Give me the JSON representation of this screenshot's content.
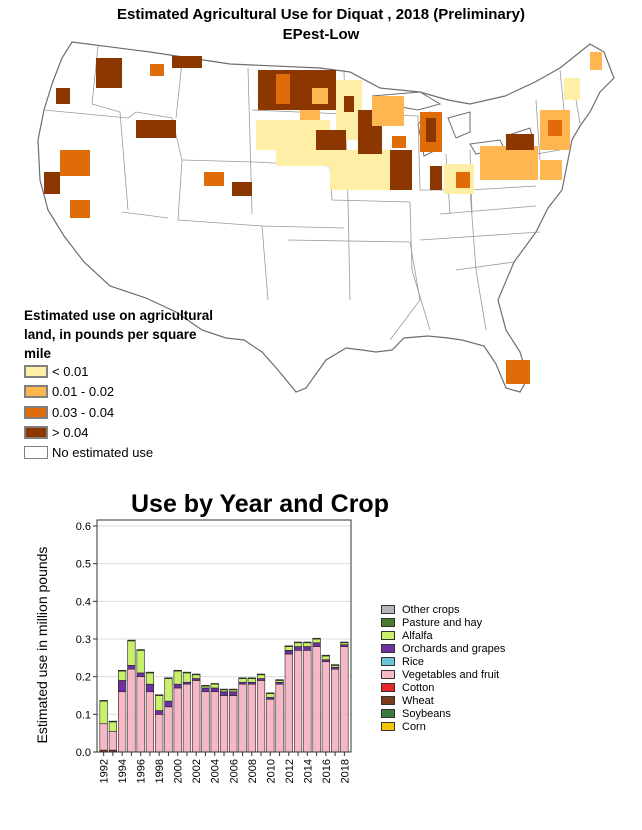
{
  "map": {
    "title": "Estimated Agricultural Use for Diquat , 2018 (Preliminary)",
    "subtitle": "EPest-Low",
    "legend_title": "Estimated use on agricultural land, in pounds per square mile",
    "legend": [
      {
        "label": "< 0.01",
        "color": "#ffeea6"
      },
      {
        "label": "0.01 - 0.02",
        "color": "#fdb650"
      },
      {
        "label": "0.03 - 0.04",
        "color": "#df6c08"
      },
      {
        "label": "> 0.04",
        "color": "#8c3700"
      },
      {
        "label": "No estimated use",
        "color": "#ffffff"
      }
    ]
  },
  "chart_data": {
    "type": "bar",
    "stacked": true,
    "title": "Use by Year and Crop",
    "xlabel": "",
    "ylabel": "Estimated use in million pounds",
    "ylim": [
      0,
      0.6
    ],
    "y_ticks": [
      "0.0",
      "0.1",
      "0.2",
      "0.3",
      "0.4",
      "0.5",
      "0.6"
    ],
    "x_ticks": [
      "1992",
      "1994",
      "1996",
      "1998",
      "2000",
      "2002",
      "2004",
      "2006",
      "2008",
      "2010",
      "2012",
      "2014",
      "2016",
      "2018"
    ],
    "grid": true,
    "legend_position": "right",
    "categories": [
      "1992",
      "1993",
      "1994",
      "1995",
      "1996",
      "1997",
      "1998",
      "1999",
      "2000",
      "2001",
      "2002",
      "2003",
      "2004",
      "2005",
      "2006",
      "2007",
      "2008",
      "2009",
      "2010",
      "2011",
      "2012",
      "2013",
      "2014",
      "2015",
      "2016",
      "2017",
      "2018"
    ],
    "series": [
      {
        "name": "Corn",
        "color": "#f2c500",
        "values": [
          0,
          0,
          0,
          0,
          0,
          0,
          0,
          0,
          0,
          0,
          0,
          0,
          0,
          0,
          0,
          0,
          0,
          0,
          0,
          0,
          0,
          0,
          0,
          0,
          0,
          0,
          0
        ]
      },
      {
        "name": "Soybeans",
        "color": "#3a7a3a",
        "values": [
          0,
          0,
          0,
          0,
          0,
          0,
          0,
          0,
          0,
          0,
          0,
          0,
          0,
          0,
          0,
          0,
          0,
          0,
          0,
          0,
          0,
          0,
          0,
          0,
          0,
          0,
          0
        ]
      },
      {
        "name": "Wheat",
        "color": "#7b3a1e",
        "values": [
          0.005,
          0.005,
          0,
          0,
          0,
          0,
          0,
          0,
          0,
          0,
          0,
          0,
          0,
          0,
          0,
          0,
          0,
          0,
          0,
          0,
          0,
          0,
          0,
          0,
          0,
          0,
          0
        ]
      },
      {
        "name": "Cotton",
        "color": "#e8262c",
        "values": [
          0,
          0,
          0,
          0,
          0,
          0,
          0,
          0,
          0,
          0,
          0,
          0,
          0,
          0,
          0,
          0,
          0,
          0,
          0,
          0,
          0,
          0,
          0,
          0,
          0,
          0,
          0
        ]
      },
      {
        "name": "Vegetables and fruit",
        "color": "#f7b8c6",
        "values": [
          0.07,
          0.05,
          0.16,
          0.22,
          0.2,
          0.16,
          0.1,
          0.12,
          0.17,
          0.18,
          0.19,
          0.16,
          0.16,
          0.15,
          0.15,
          0.18,
          0.18,
          0.19,
          0.14,
          0.18,
          0.26,
          0.27,
          0.27,
          0.28,
          0.24,
          0.22,
          0.28
        ]
      },
      {
        "name": "Rice",
        "color": "#6cc4d8",
        "values": [
          0,
          0,
          0,
          0,
          0,
          0,
          0,
          0,
          0,
          0,
          0,
          0,
          0,
          0,
          0,
          0,
          0,
          0,
          0,
          0,
          0,
          0,
          0,
          0,
          0,
          0,
          0
        ]
      },
      {
        "name": "Orchards and grapes",
        "color": "#7030a0",
        "values": [
          0,
          0,
          0.03,
          0.01,
          0.01,
          0.02,
          0.01,
          0.015,
          0.01,
          0.005,
          0.005,
          0.01,
          0.01,
          0.01,
          0.01,
          0.005,
          0.005,
          0.005,
          0.005,
          0.005,
          0.01,
          0.01,
          0.01,
          0.01,
          0.005,
          0.005,
          0.005
        ]
      },
      {
        "name": "Alfalfa",
        "color": "#c9f06b",
        "values": [
          0.06,
          0.025,
          0.025,
          0.065,
          0.06,
          0.03,
          0.04,
          0.06,
          0.035,
          0.025,
          0.01,
          0.005,
          0.01,
          0.005,
          0.005,
          0.01,
          0.01,
          0.01,
          0.01,
          0.005,
          0.01,
          0.01,
          0.01,
          0.01,
          0.01,
          0.005,
          0.005
        ]
      },
      {
        "name": "Pasture and hay",
        "color": "#4a7a2a",
        "values": [
          0.002,
          0.002,
          0.002,
          0.002,
          0.002,
          0.002,
          0.002,
          0.002,
          0.002,
          0.002,
          0.002,
          0.002,
          0.002,
          0.002,
          0.002,
          0.002,
          0.002,
          0.002,
          0.002,
          0.002,
          0.002,
          0.002,
          0.002,
          0.002,
          0.002,
          0.002,
          0.002
        ]
      },
      {
        "name": "Other crops",
        "color": "#b8b4bd",
        "values": [
          0,
          0,
          0,
          0,
          0,
          0,
          0,
          0,
          0,
          0,
          0,
          0,
          0,
          0,
          0,
          0,
          0,
          0,
          0,
          0,
          0,
          0,
          0,
          0,
          0,
          0,
          0
        ]
      }
    ]
  }
}
